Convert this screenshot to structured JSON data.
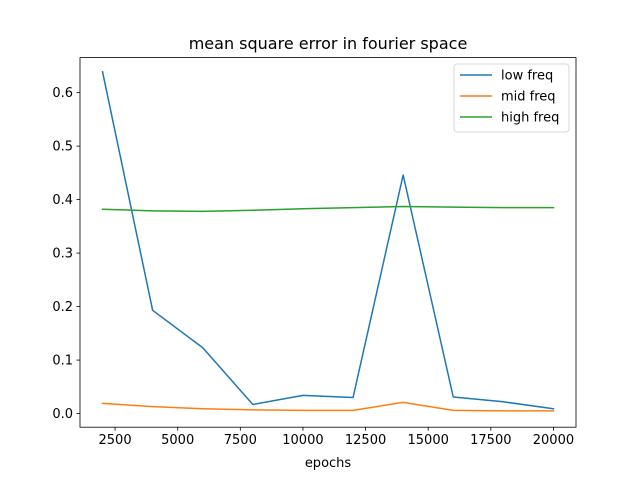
{
  "chart_data": {
    "type": "line",
    "title": "mean square error in fourier space",
    "xlabel": "epochs",
    "ylabel": "",
    "x": [
      2000,
      4000,
      6000,
      8000,
      10000,
      12000,
      14000,
      16000,
      18000,
      20000
    ],
    "xlim": [
      1100,
      20900
    ],
    "ylim": [
      -0.0255,
      0.6655
    ],
    "xticks": [
      2500,
      5000,
      7500,
      10000,
      12500,
      15000,
      17500,
      20000
    ],
    "yticks": [
      0.0,
      0.1,
      0.2,
      0.3,
      0.4,
      0.5,
      0.6
    ],
    "xtick_labels": [
      "2500",
      "5000",
      "7500",
      "10000",
      "12500",
      "15000",
      "17500",
      "20000"
    ],
    "ytick_labels": [
      "0.0",
      "0.1",
      "0.2",
      "0.3",
      "0.4",
      "0.5",
      "0.6"
    ],
    "grid": false,
    "legend_position": "top-right",
    "series": [
      {
        "name": "low freq",
        "color": "#1f77b4",
        "values": [
          0.639,
          0.193,
          0.123,
          0.017,
          0.034,
          0.03,
          0.446,
          0.031,
          0.022,
          0.009
        ]
      },
      {
        "name": "mid freq",
        "color": "#ff7f0e",
        "values": [
          0.019,
          0.013,
          0.009,
          0.007,
          0.006,
          0.006,
          0.021,
          0.006,
          0.005,
          0.005
        ]
      },
      {
        "name": "high freq",
        "color": "#2ca02c",
        "values": [
          0.382,
          0.379,
          0.378,
          0.38,
          0.383,
          0.385,
          0.387,
          0.386,
          0.385,
          0.385
        ]
      }
    ]
  }
}
